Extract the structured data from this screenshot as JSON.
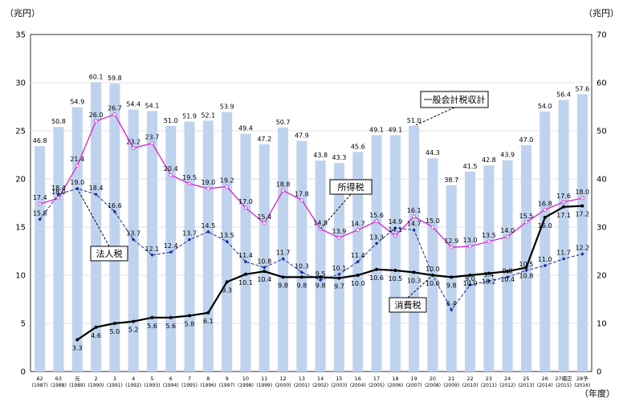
{
  "chart_data": {
    "type": "bar+line",
    "left_unit": "（兆円）",
    "right_unit": "（兆円）",
    "x_unit": "（年度）",
    "left_axis": {
      "min": 0,
      "max": 35,
      "ticks": [
        0,
        5,
        10,
        15,
        20,
        25,
        30,
        35
      ]
    },
    "right_axis": {
      "min": 0,
      "max": 70,
      "ticks": [
        0,
        10,
        20,
        30,
        40,
        50,
        60,
        70
      ]
    },
    "categories": [
      {
        "era": "62",
        "year": "(1987)"
      },
      {
        "era": "63",
        "year": "(1988)"
      },
      {
        "era": "元",
        "year": "(1989)"
      },
      {
        "era": "2",
        "year": "(1990)"
      },
      {
        "era": "3",
        "year": "(1991)"
      },
      {
        "era": "4",
        "year": "(1992)"
      },
      {
        "era": "5",
        "year": "(1993)"
      },
      {
        "era": "6",
        "year": "(1994)"
      },
      {
        "era": "7",
        "year": "(1995)"
      },
      {
        "era": "8",
        "year": "(1996)"
      },
      {
        "era": "9",
        "year": "(1997)"
      },
      {
        "era": "10",
        "year": "(1998)"
      },
      {
        "era": "11",
        "year": "(1999)"
      },
      {
        "era": "12",
        "year": "(2000)"
      },
      {
        "era": "13",
        "year": "(2001)"
      },
      {
        "era": "14",
        "year": "(2002)"
      },
      {
        "era": "15",
        "year": "(2003)"
      },
      {
        "era": "16",
        "year": "(2004)"
      },
      {
        "era": "17",
        "year": "(2005)"
      },
      {
        "era": "18",
        "year": "(2006)"
      },
      {
        "era": "19",
        "year": "(2007)"
      },
      {
        "era": "20",
        "year": "(2008)"
      },
      {
        "era": "21",
        "year": "(2009)"
      },
      {
        "era": "22",
        "year": "(2010)"
      },
      {
        "era": "23",
        "year": "(2011)"
      },
      {
        "era": "24",
        "year": "(2012)"
      },
      {
        "era": "25",
        "year": "(2013)"
      },
      {
        "era": "26",
        "year": "(2014)"
      },
      {
        "era": "27補正",
        "year": "(2015)"
      },
      {
        "era": "28予",
        "year": "(2016)"
      }
    ],
    "series": [
      {
        "name": "一般会計税収計",
        "kind": "bar",
        "axis": "right",
        "color": "#bfd3ee",
        "values": [
          46.8,
          50.8,
          54.9,
          60.1,
          59.8,
          54.4,
          54.1,
          51.0,
          51.9,
          52.1,
          53.9,
          49.4,
          47.2,
          50.7,
          47.9,
          43.8,
          43.3,
          45.6,
          49.1,
          49.1,
          51.0,
          44.3,
          38.7,
          41.5,
          42.8,
          43.9,
          47.0,
          54.0,
          56.4,
          57.6
        ],
        "labels": [
          "46.8",
          "50.8",
          "54.9",
          "60.1",
          "59.8",
          "54.4",
          "54.1",
          "51.0",
          "51.9",
          "52.1",
          "53.9",
          "49.4",
          "47.2",
          "50.7",
          "47.9",
          "43.8",
          "43.3",
          "45.6",
          "49.1",
          "49.1",
          "51.0",
          "44.3",
          "38.7",
          "41.5",
          "42.8",
          "43.9",
          "47.0",
          "54.0",
          "56.4",
          "57.6"
        ]
      },
      {
        "name": "所得税",
        "kind": "line",
        "axis": "left",
        "color": "#d62fcf",
        "values": [
          17.4,
          18.0,
          21.4,
          26.0,
          26.7,
          23.2,
          23.7,
          20.4,
          19.5,
          19.0,
          19.2,
          17.0,
          15.4,
          18.8,
          17.8,
          14.8,
          13.9,
          14.7,
          15.6,
          14.1,
          16.1,
          15.0,
          12.9,
          13.0,
          13.5,
          14.0,
          15.5,
          16.8,
          17.6,
          18.0
        ],
        "labels": [
          "17.4",
          "18.0",
          "21.4",
          "26.0",
          "26.7",
          "23.2",
          "23.7",
          "20.4",
          "19.5",
          "19.0",
          "19.2",
          "17.0",
          "15.4",
          "18.8",
          "17.8",
          "14.8",
          "13.9",
          "14.7",
          "15.6",
          "14.1",
          "16.1",
          "15.0",
          "12.9",
          "13.0",
          "13.5",
          "14.0",
          "15.5",
          "16.8",
          "17.6",
          "18.0"
        ]
      },
      {
        "name": "法人税",
        "kind": "line",
        "style": "dashed",
        "axis": "left",
        "color": "#1a2a8c",
        "values": [
          15.8,
          18.4,
          19.0,
          18.4,
          16.6,
          13.7,
          12.1,
          12.4,
          13.7,
          14.5,
          13.5,
          11.4,
          10.8,
          11.7,
          10.3,
          9.5,
          10.1,
          11.4,
          13.3,
          14.9,
          14.7,
          10.0,
          6.4,
          9.0,
          9.4,
          9.8,
          10.5,
          11.0,
          11.7,
          12.2
        ],
        "labels": [
          "15.8",
          "18.4",
          "19.0",
          "18.4",
          "16.6",
          "13.7",
          "12.1",
          "12.4",
          "13.7",
          "14.5",
          "13.5",
          "11.4",
          "10.8",
          "11.7",
          "10.3",
          "9.5",
          "10.1",
          "11.4",
          "13.3",
          "14.9",
          "14.7",
          "10.0",
          "6.4",
          "9.0",
          "9.4",
          "9.8",
          "10.5",
          "11.0",
          "11.7",
          "12.2"
        ]
      },
      {
        "name": "消費税",
        "kind": "line",
        "axis": "left",
        "color": "#000000",
        "values": [
          null,
          null,
          3.3,
          4.6,
          5.0,
          5.2,
          5.6,
          5.6,
          5.8,
          6.1,
          9.3,
          10.1,
          10.4,
          9.8,
          9.8,
          9.8,
          9.7,
          10.0,
          10.6,
          10.5,
          10.3,
          10.0,
          9.8,
          10.0,
          10.2,
          10.4,
          10.8,
          16.0,
          17.1,
          17.2
        ],
        "labels": [
          null,
          null,
          "3.3",
          "4.6",
          "5.0",
          "5.2",
          "5.6",
          "5.6",
          "5.8",
          "6.1",
          "9.3",
          "10.1",
          "10.4",
          "9.8",
          "9.8",
          "9.8",
          "9.7",
          "10.0",
          "10.6",
          "10.5",
          "10.3",
          "10.0",
          "9.8",
          "10.0",
          "10.2",
          "10.4",
          "10.8",
          "16.0",
          "17.1",
          "17.2"
        ]
      }
    ],
    "callouts": [
      {
        "text": "一般会計税収計",
        "series": 0,
        "target_index": 20
      },
      {
        "text": "所得税",
        "series": 1,
        "target_index": 15
      },
      {
        "text": "法人税",
        "series": 2,
        "target_index": 2
      },
      {
        "text": "消費税",
        "series": 3,
        "target_index": 21
      }
    ]
  }
}
